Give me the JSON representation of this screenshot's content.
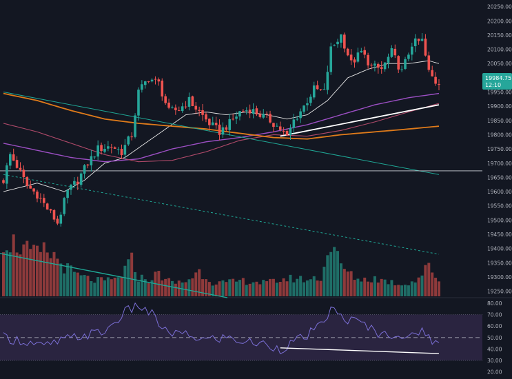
{
  "colors": {
    "background": "#131722",
    "up": "#26a69a",
    "down": "#ef5350",
    "up_volume": "#1f6e67",
    "down_volume": "#8e3a3b",
    "ma_fast": "#e6e6e6",
    "ma_purple": "#9c4fc4",
    "ma_pink": "#b04a6a",
    "ma_orange": "#e07b1a",
    "trendline_teal": "#1fa896",
    "rsi_line": "#7b6fd6",
    "rsi_band": "#2a2440",
    "axis_text": "#b2b5be",
    "price_label": "#26a69a"
  },
  "price_axis": {
    "current_price_label": "19984.75",
    "countdown_label": "12:10"
  },
  "chart_data": [
    {
      "type": "candlestick",
      "title": "",
      "ylim": [
        19237,
        20254
      ],
      "yticks": [
        "19250.00",
        "19300.00",
        "19350.00",
        "19400.00",
        "19450.00",
        "19500.00",
        "19550.00",
        "19600.00",
        "19650.00",
        "19700.00",
        "19750.00",
        "19800.00",
        "19850.00",
        "19900.00",
        "19950.00",
        "20000.00",
        "20050.00",
        "20100.00",
        "20150.00",
        "20200.00",
        "20250.00"
      ],
      "grid": false,
      "legend": "none",
      "candle_count": 130,
      "close_anchors": [
        [
          0,
          19640
        ],
        [
          2,
          19730
        ],
        [
          4,
          19690
        ],
        [
          7,
          19620
        ],
        [
          10,
          19590
        ],
        [
          13,
          19540
        ],
        [
          16,
          19490
        ],
        [
          19,
          19600
        ],
        [
          22,
          19640
        ],
        [
          25,
          19700
        ],
        [
          28,
          19750
        ],
        [
          32,
          19760
        ],
        [
          35,
          19740
        ],
        [
          38,
          19800
        ],
        [
          40,
          19950
        ],
        [
          43,
          20000
        ],
        [
          46,
          19980
        ],
        [
          49,
          19880
        ],
        [
          52,
          19890
        ],
        [
          55,
          19920
        ],
        [
          58,
          19880
        ],
        [
          61,
          19840
        ],
        [
          64,
          19810
        ],
        [
          67,
          19840
        ],
        [
          70,
          19880
        ],
        [
          73,
          19890
        ],
        [
          76,
          19870
        ],
        [
          79,
          19850
        ],
        [
          82,
          19820
        ],
        [
          84,
          19790
        ],
        [
          86,
          19850
        ],
        [
          89,
          19900
        ],
        [
          92,
          19960
        ],
        [
          95,
          19950
        ],
        [
          97,
          20100
        ],
        [
          100,
          20150
        ],
        [
          103,
          20050
        ],
        [
          106,
          20090
        ],
        [
          109,
          20040
        ],
        [
          112,
          20030
        ],
        [
          115,
          20090
        ],
        [
          118,
          20020
        ],
        [
          121,
          20120
        ],
        [
          124,
          20130
        ],
        [
          126,
          20020
        ],
        [
          128,
          19985
        ],
        [
          129,
          19985
        ]
      ],
      "close_anchor_units": [
        "candle_index",
        "price"
      ],
      "moving_averages": [
        {
          "id": "ma_fast",
          "points": [
            [
              0,
              19600
            ],
            [
              10,
              19630
            ],
            [
              18,
              19600
            ],
            [
              24,
              19640
            ],
            [
              30,
              19700
            ],
            [
              36,
              19720
            ],
            [
              42,
              19770
            ],
            [
              48,
              19820
            ],
            [
              54,
              19870
            ],
            [
              60,
              19880
            ],
            [
              66,
              19870
            ],
            [
              72,
              19880
            ],
            [
              78,
              19870
            ],
            [
              84,
              19855
            ],
            [
              90,
              19870
            ],
            [
              96,
              19920
            ],
            [
              102,
              20000
            ],
            [
              108,
              20030
            ],
            [
              114,
              20050
            ],
            [
              120,
              20050
            ],
            [
              126,
              20060
            ],
            [
              129,
              20050
            ]
          ]
        },
        {
          "id": "ma_purple",
          "points": [
            [
              0,
              19770
            ],
            [
              10,
              19745
            ],
            [
              20,
              19720
            ],
            [
              30,
              19705
            ],
            [
              40,
              19715
            ],
            [
              50,
              19750
            ],
            [
              60,
              19775
            ],
            [
              70,
              19790
            ],
            [
              80,
              19810
            ],
            [
              90,
              19835
            ],
            [
              100,
              19870
            ],
            [
              110,
              19905
            ],
            [
              120,
              19930
            ],
            [
              129,
              19945
            ]
          ]
        },
        {
          "id": "ma_pink",
          "points": [
            [
              0,
              19840
            ],
            [
              10,
              19810
            ],
            [
              20,
              19770
            ],
            [
              30,
              19730
            ],
            [
              40,
              19705
            ],
            [
              50,
              19710
            ],
            [
              60,
              19740
            ],
            [
              70,
              19780
            ],
            [
              80,
              19800
            ],
            [
              90,
              19795
            ],
            [
              100,
              19815
            ],
            [
              110,
              19845
            ],
            [
              120,
              19880
            ],
            [
              129,
              19910
            ]
          ]
        },
        {
          "id": "ma_orange",
          "points": [
            [
              0,
              19945
            ],
            [
              10,
              19920
            ],
            [
              20,
              19885
            ],
            [
              30,
              19855
            ],
            [
              40,
              19840
            ],
            [
              50,
              19830
            ],
            [
              60,
              19820
            ],
            [
              70,
              19805
            ],
            [
              80,
              19790
            ],
            [
              90,
              19785
            ],
            [
              100,
              19800
            ],
            [
              110,
              19810
            ],
            [
              120,
              19820
            ],
            [
              129,
              19830
            ]
          ]
        }
      ],
      "trendlines": [
        {
          "id": "teal-descending",
          "from": [
            0,
            19950
          ],
          "to": [
            129,
            19660
          ]
        },
        {
          "id": "teal-dashed",
          "from": [
            0,
            19660
          ],
          "to": [
            129,
            19380
          ],
          "dashed": true
        },
        {
          "id": "white-ascending",
          "from": [
            82,
            19795
          ],
          "to": [
            129,
            19905
          ]
        },
        {
          "id": "horizontal-level",
          "from": [
            0,
            19673
          ],
          "to": [
            142,
            19673
          ]
        }
      ],
      "volume": {
        "ylim": [
          0,
          110
        ],
        "anchors": [
          [
            0,
            95
          ],
          [
            3,
            90
          ],
          [
            6,
            80
          ],
          [
            9,
            70
          ],
          [
            12,
            75
          ],
          [
            15,
            68
          ],
          [
            18,
            50
          ],
          [
            22,
            35
          ],
          [
            26,
            28
          ],
          [
            30,
            25
          ],
          [
            34,
            30
          ],
          [
            38,
            60
          ],
          [
            40,
            32
          ],
          [
            43,
            28
          ],
          [
            46,
            38
          ],
          [
            50,
            22
          ],
          [
            54,
            25
          ],
          [
            58,
            42
          ],
          [
            62,
            24
          ],
          [
            66,
            22
          ],
          [
            70,
            26
          ],
          [
            74,
            25
          ],
          [
            78,
            22
          ],
          [
            82,
            28
          ],
          [
            86,
            30
          ],
          [
            90,
            28
          ],
          [
            94,
            32
          ],
          [
            97,
            88
          ],
          [
            100,
            52
          ],
          [
            103,
            35
          ],
          [
            106,
            28
          ],
          [
            110,
            30
          ],
          [
            114,
            25
          ],
          [
            118,
            20
          ],
          [
            122,
            26
          ],
          [
            126,
            50
          ],
          [
            129,
            28
          ]
        ]
      }
    },
    {
      "type": "line",
      "title": "",
      "ylim": [
        18,
        83
      ],
      "yticks": [
        "20.00",
        "30.00",
        "40.00",
        "50.00",
        "60.00",
        "70.00",
        "80.00"
      ],
      "band": [
        30,
        70
      ],
      "midline": 50,
      "points": [
        [
          0,
          50
        ],
        [
          6,
          47
        ],
        [
          12,
          42
        ],
        [
          18,
          48
        ],
        [
          24,
          52
        ],
        [
          30,
          55
        ],
        [
          36,
          72
        ],
        [
          40,
          78
        ],
        [
          44,
          70
        ],
        [
          48,
          55
        ],
        [
          54,
          52
        ],
        [
          60,
          48
        ],
        [
          66,
          50
        ],
        [
          72,
          46
        ],
        [
          78,
          44
        ],
        [
          82,
          40
        ],
        [
          86,
          46
        ],
        [
          90,
          52
        ],
        [
          94,
          60
        ],
        [
          97,
          75
        ],
        [
          100,
          68
        ],
        [
          104,
          64
        ],
        [
          108,
          60
        ],
        [
          112,
          52
        ],
        [
          116,
          54
        ],
        [
          120,
          48
        ],
        [
          124,
          58
        ],
        [
          126,
          50
        ],
        [
          129,
          44
        ]
      ],
      "divergence_line": {
        "from": [
          82,
          41
        ],
        "to": [
          129,
          36
        ]
      }
    }
  ]
}
